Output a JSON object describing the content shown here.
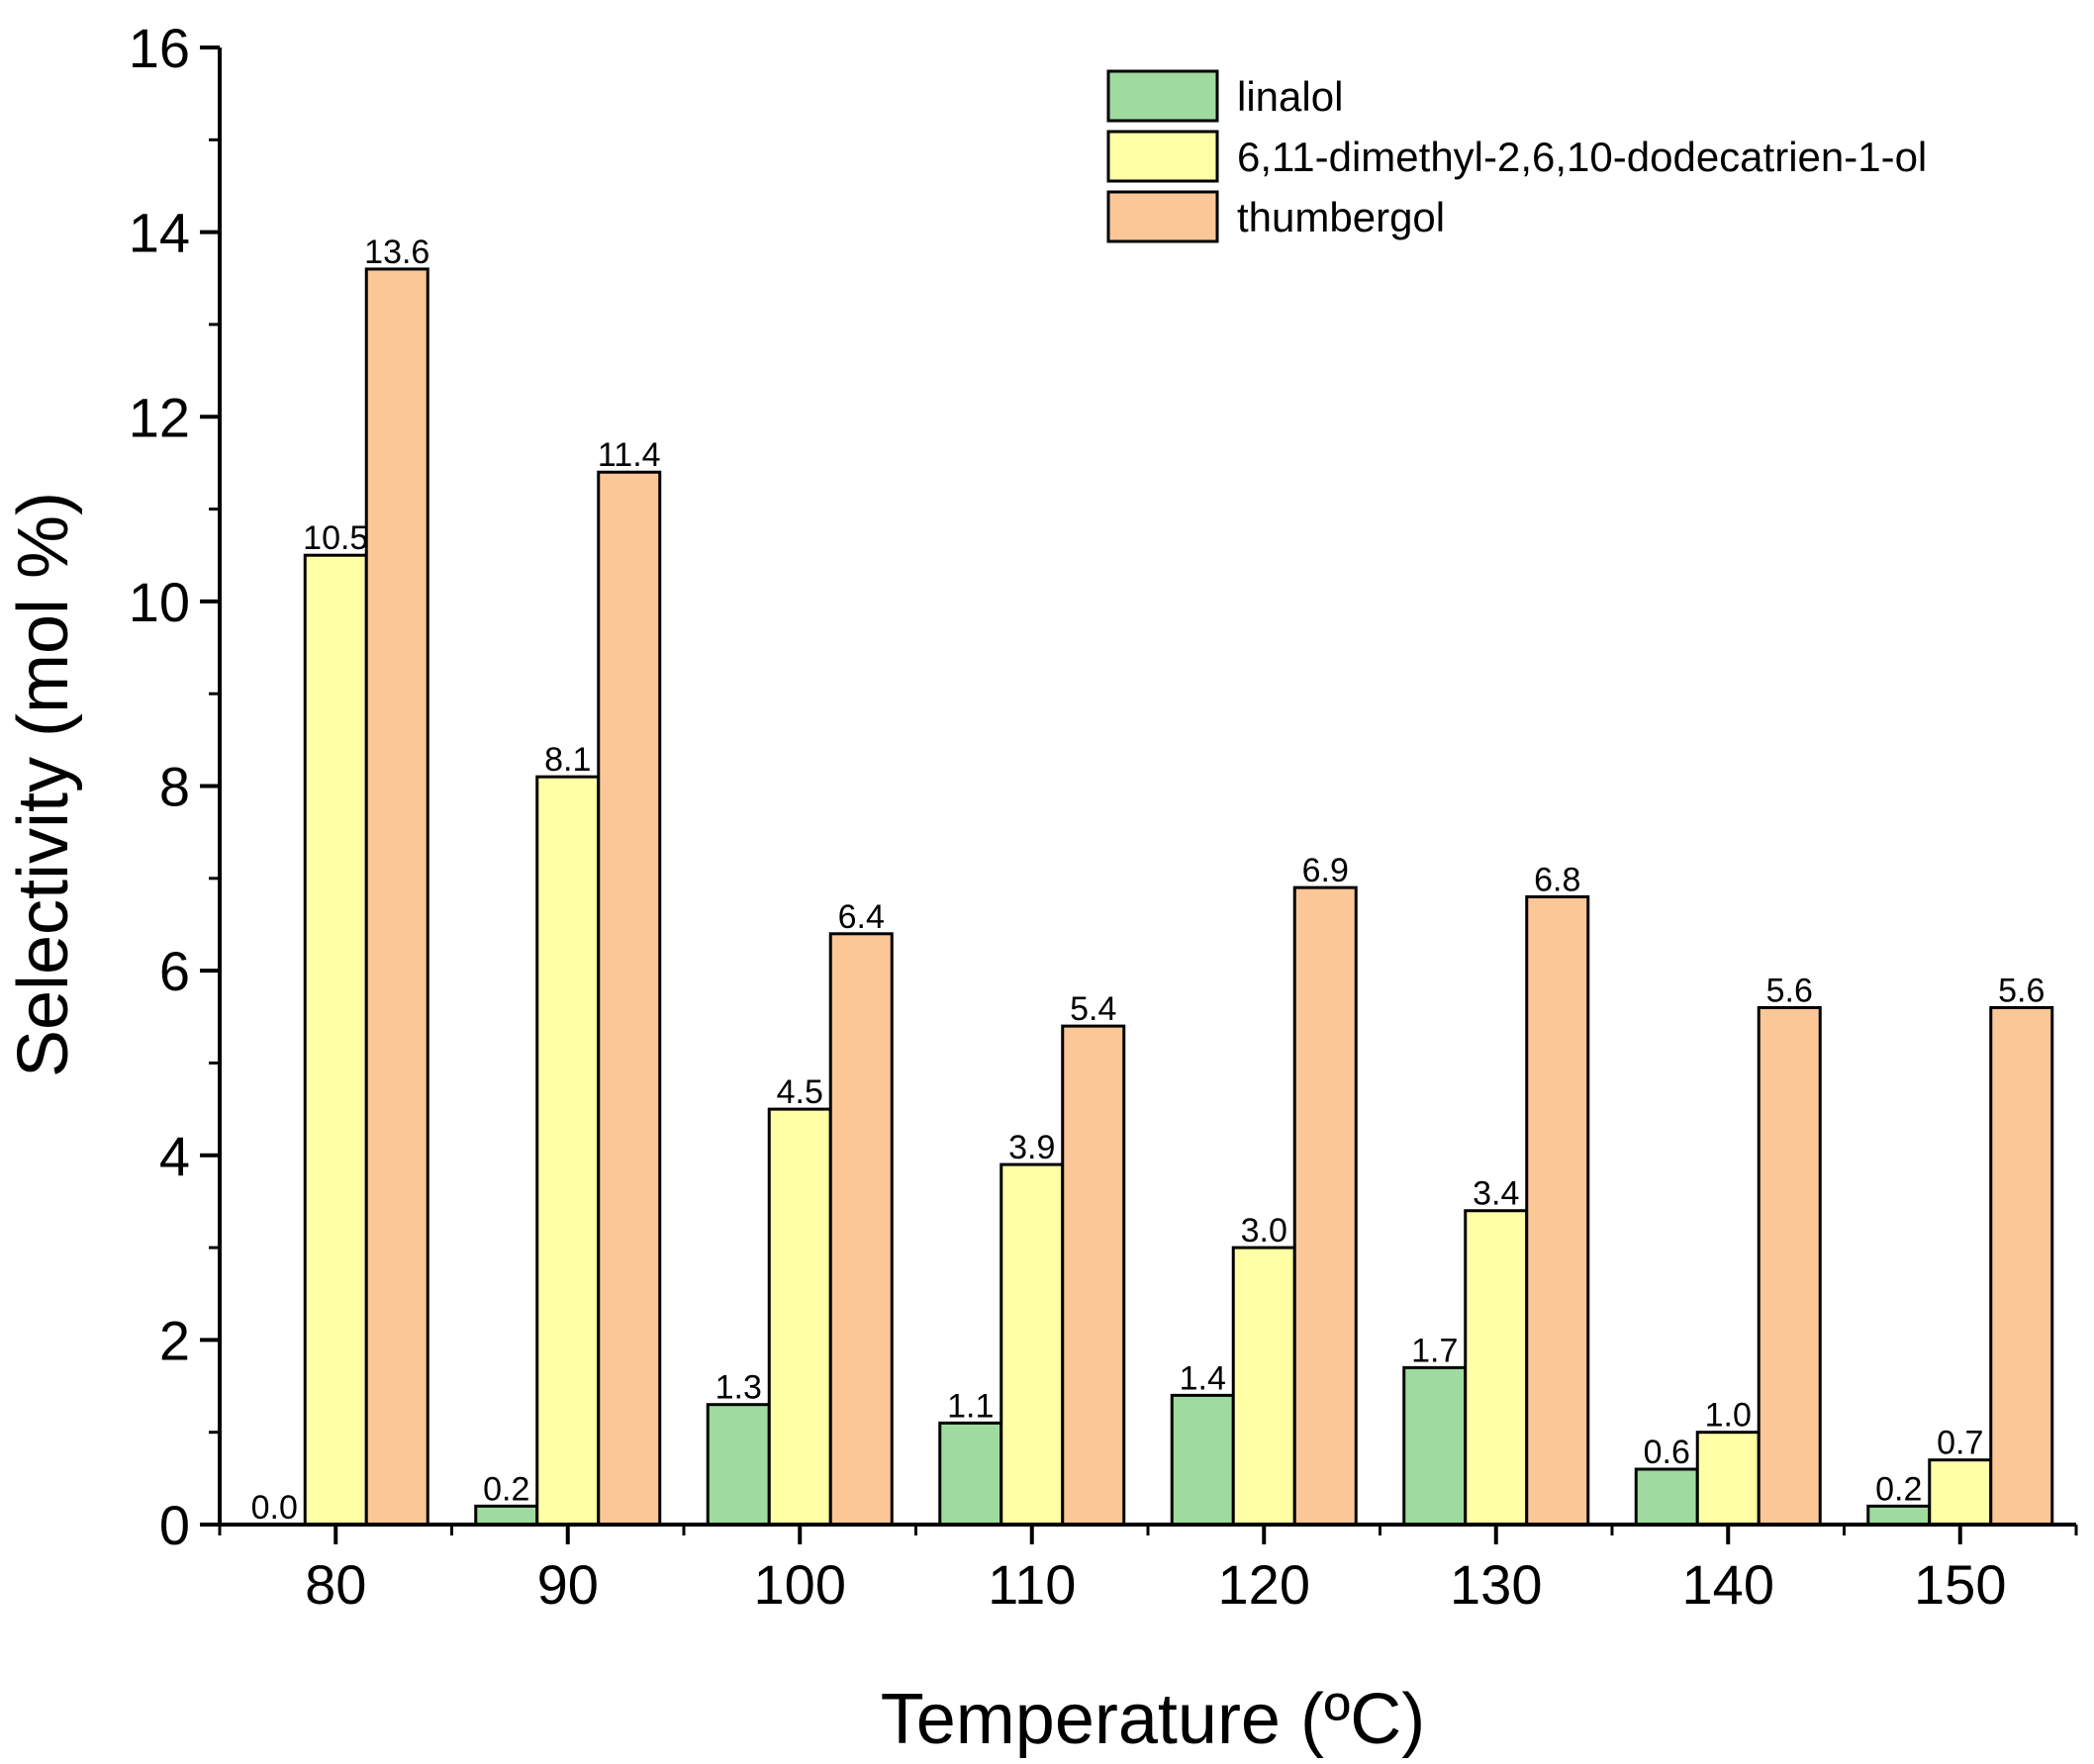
{
  "chart_data": {
    "type": "bar",
    "title": "",
    "xlabel": "Temperature (ºC)",
    "ylabel": "Selectivity (mol %)",
    "ylim": [
      0,
      16
    ],
    "yticks": [
      0,
      2,
      4,
      6,
      8,
      10,
      12,
      14,
      16
    ],
    "categories": [
      "80",
      "90",
      "100",
      "110",
      "120",
      "130",
      "140",
      "150"
    ],
    "series": [
      {
        "name": "linalol",
        "color": "#9fdb9f",
        "values": [
          0.0,
          0.2,
          1.3,
          1.1,
          1.4,
          1.7,
          0.6,
          0.2
        ],
        "labels": [
          "0.0",
          "0.2",
          "1.3",
          "1.1",
          "1.4",
          "1.7",
          "0.6",
          "0.2"
        ]
      },
      {
        "name": "6,11-dimethyl-2,6,10-dodecatrien-1-ol",
        "color": "#ffffa6",
        "values": [
          10.5,
          8.1,
          4.5,
          3.9,
          3.0,
          3.4,
          1.0,
          0.7
        ],
        "labels": [
          "10.5",
          "8.1",
          "4.5",
          "3.9",
          "3.0",
          "3.4",
          "1.0",
          "0.7"
        ]
      },
      {
        "name": "thumbergol",
        "color": "#fbc797",
        "values": [
          13.6,
          11.4,
          6.4,
          5.4,
          6.9,
          6.8,
          5.6,
          5.6
        ],
        "labels": [
          "13.6",
          "11.4",
          "6.4",
          "5.4",
          "6.9",
          "6.8",
          "5.6",
          "5.6"
        ]
      }
    ],
    "legend_position": "top-right",
    "grid": false
  }
}
